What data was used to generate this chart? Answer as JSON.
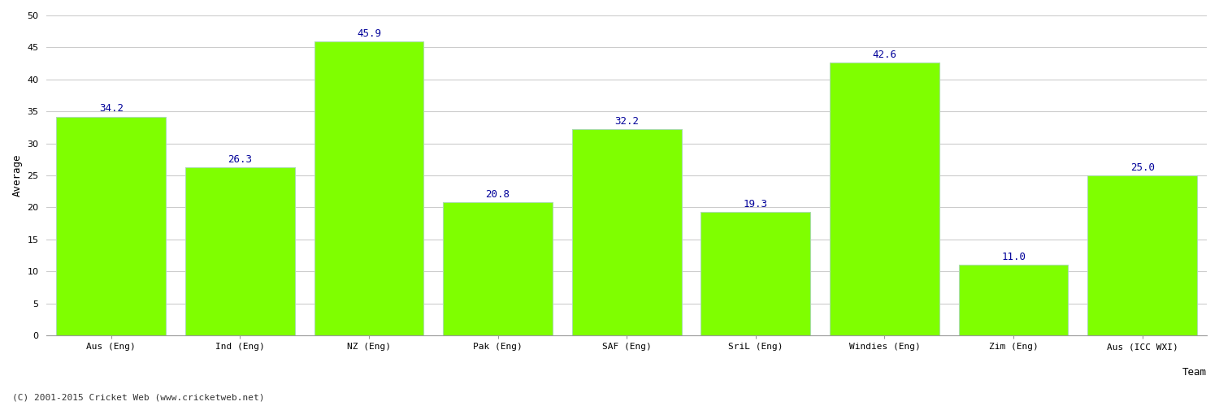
{
  "categories": [
    "Aus (Eng)",
    "Ind (Eng)",
    "NZ (Eng)",
    "Pak (Eng)",
    "SAF (Eng)",
    "SriL (Eng)",
    "Windies (Eng)",
    "Zim (Eng)",
    "Aus (ICC WXI)"
  ],
  "values": [
    34.2,
    26.3,
    45.9,
    20.8,
    32.2,
    19.3,
    42.6,
    11.0,
    25.0
  ],
  "bar_color": "#7FFF00",
  "bar_edge_color": "#aaddaa",
  "xlabel": "Team",
  "ylabel": "Average",
  "ylim": [
    0,
    50
  ],
  "yticks": [
    0,
    5,
    10,
    15,
    20,
    25,
    30,
    35,
    40,
    45,
    50
  ],
  "label_color": "#000099",
  "label_fontsize": 9,
  "axis_fontsize": 9,
  "tick_fontsize": 8,
  "grid_color": "#cccccc",
  "background_color": "#ffffff",
  "footer_text": "(C) 2001-2015 Cricket Web (www.cricketweb.net)",
  "footer_fontsize": 8,
  "bar_width": 0.85
}
